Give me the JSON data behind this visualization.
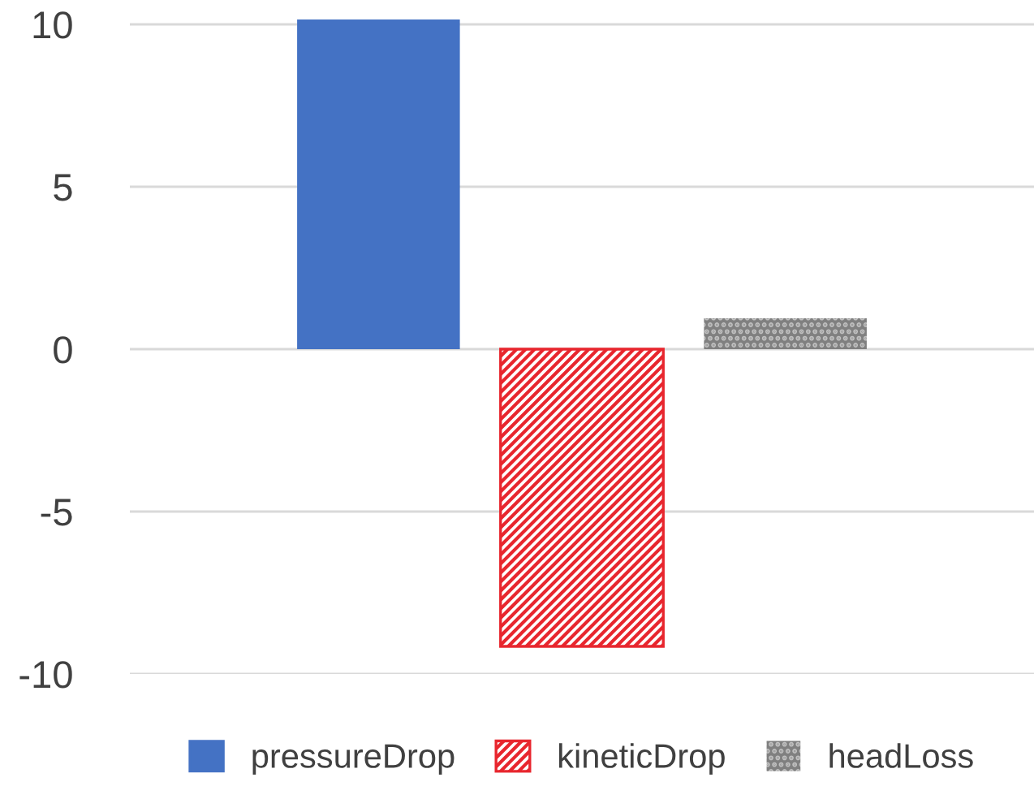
{
  "chart_data": {
    "type": "bar",
    "categories": [
      null
    ],
    "series": [
      {
        "name": "pressureDrop",
        "color": "#4472c4",
        "values": [
          10.15
        ]
      },
      {
        "name": "kineticDrop",
        "color": "#e8262e",
        "values": [
          -9.15
        ]
      },
      {
        "name": "headLoss",
        "color": "#808080",
        "values": [
          0.95
        ]
      }
    ],
    "ylim": [
      -10,
      10.2
    ],
    "yticks": [
      -10,
      -5,
      0,
      5,
      10
    ],
    "grid": "y",
    "legend": "bottom"
  }
}
